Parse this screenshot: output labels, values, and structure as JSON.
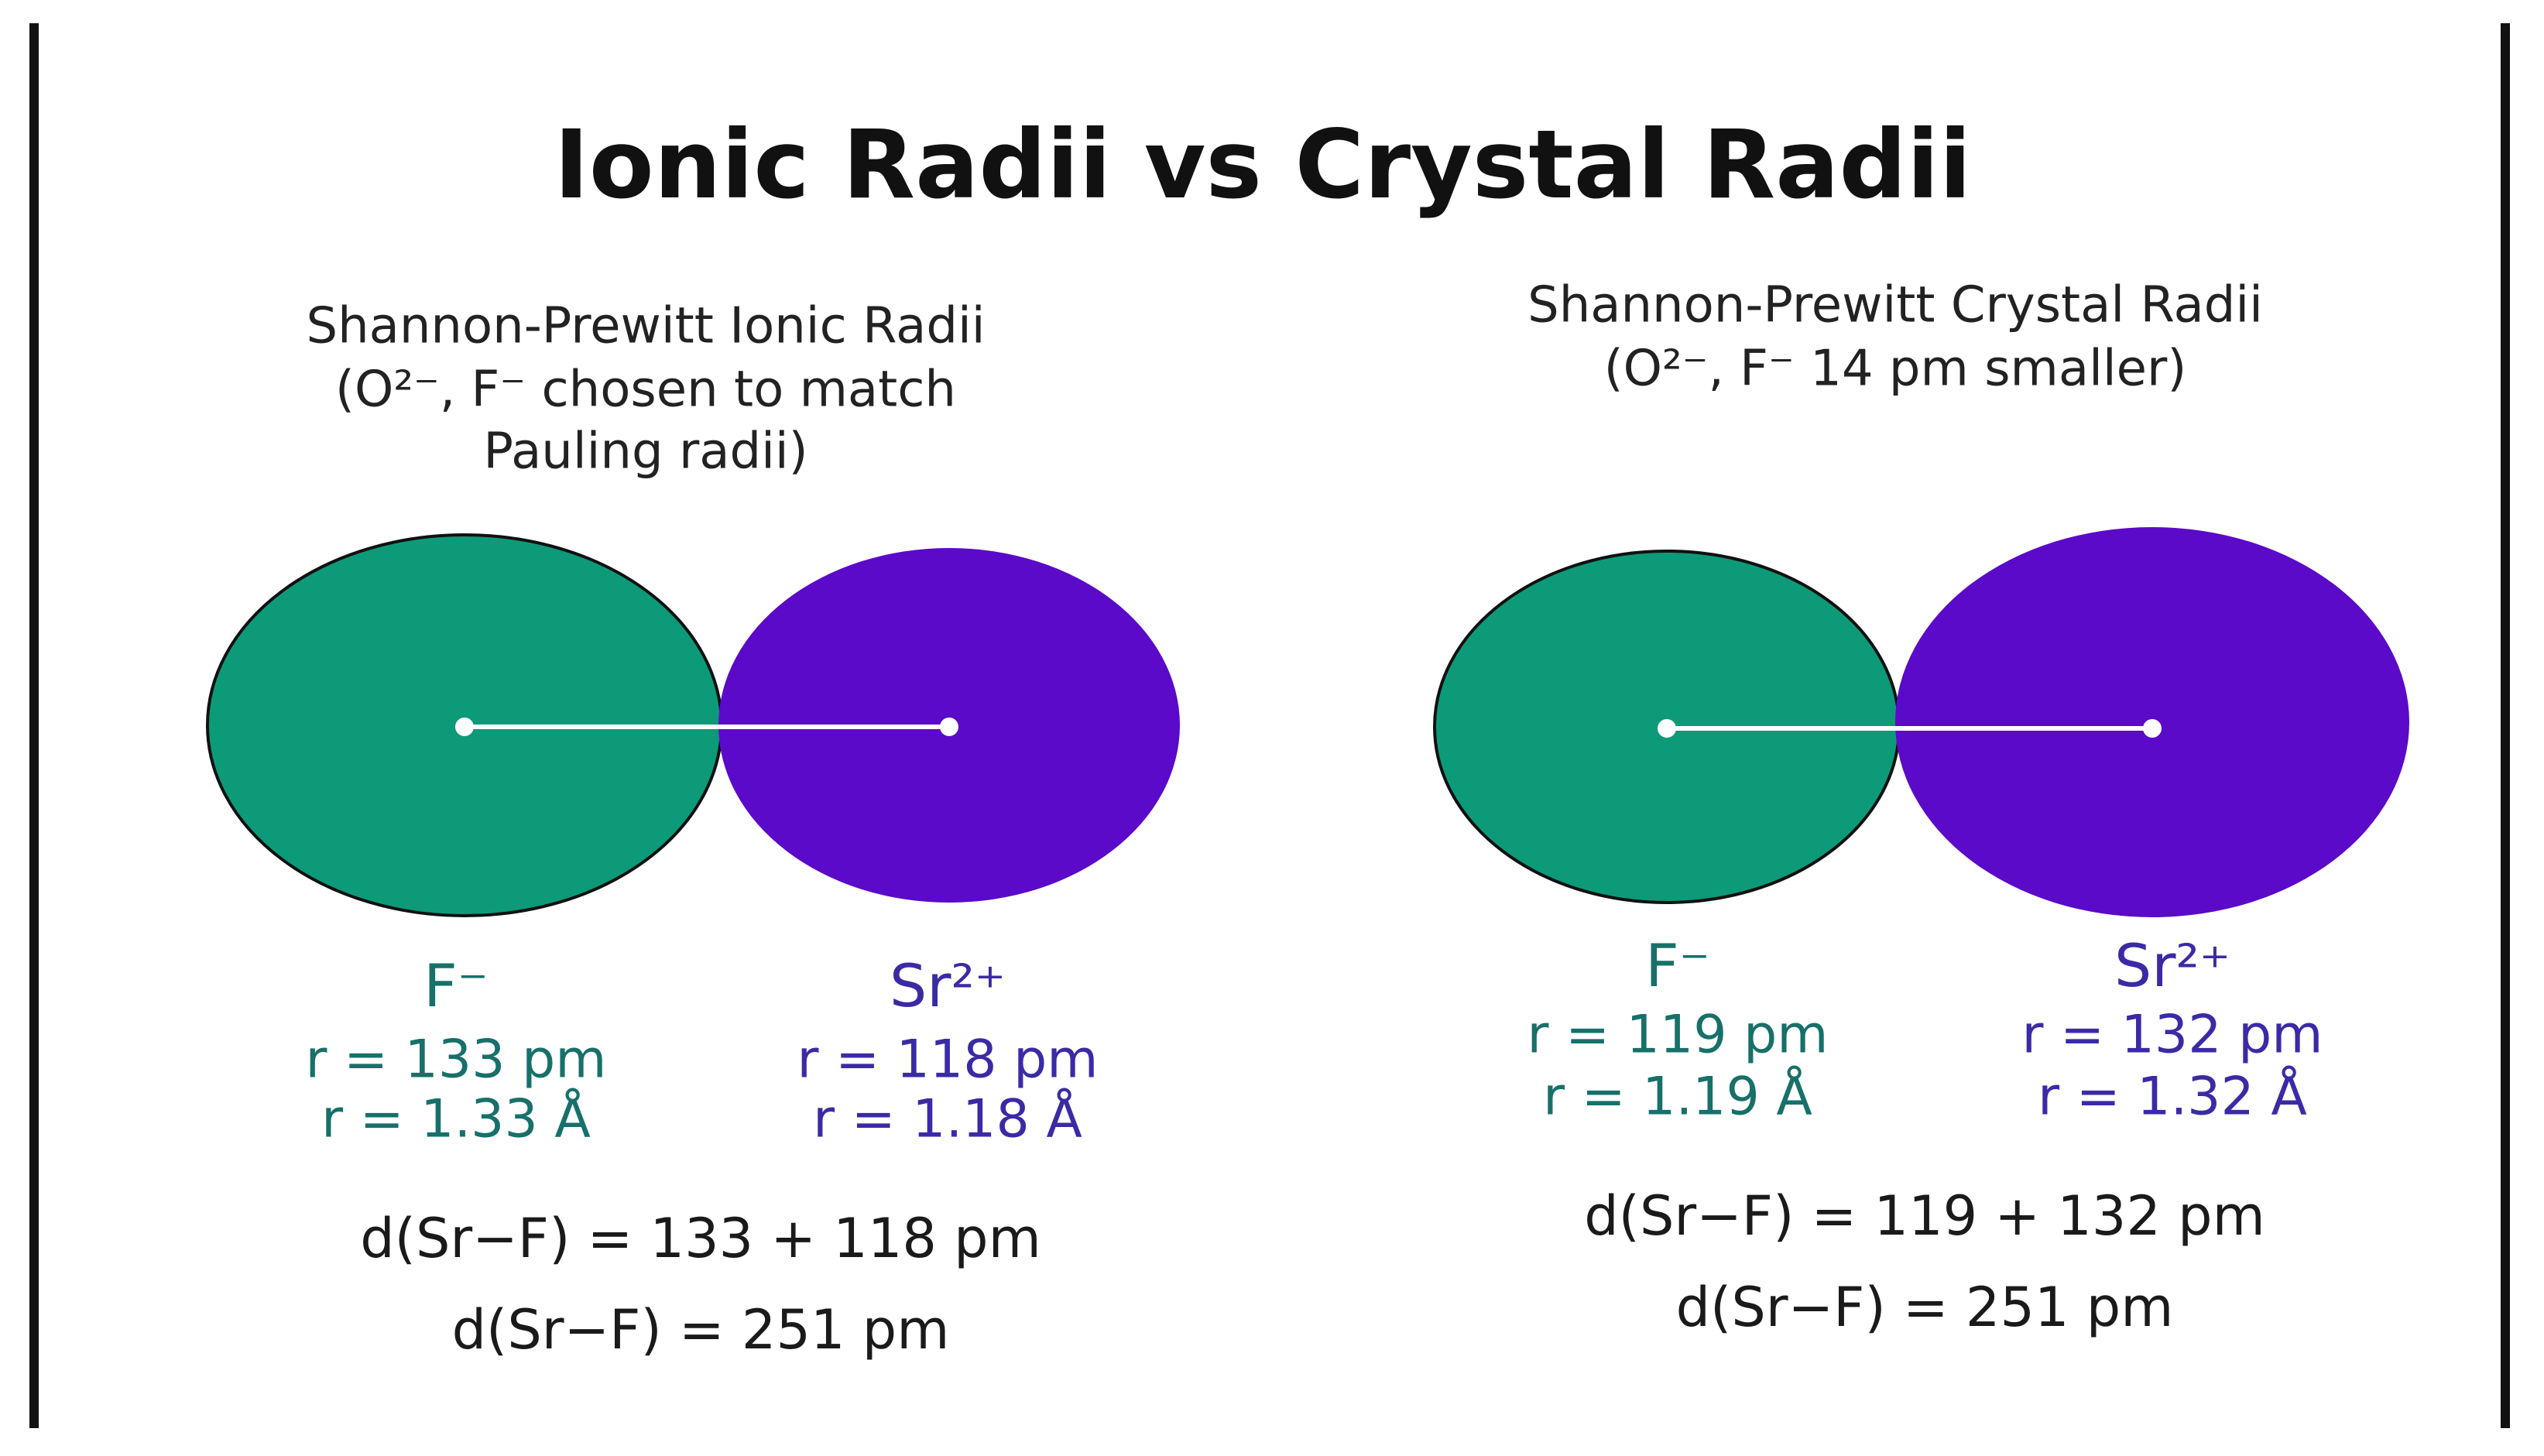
{
  "title": "Ionic Radii vs Crystal Radii",
  "panels": [
    {
      "heading": [
        "Shannon-Prewitt Ionic Radii",
        "(O²⁻, F⁻ chosen to match",
        "Pauling radii)"
      ],
      "ions": [
        {
          "name": "F⁻",
          "radius_pm": "r = 133 pm",
          "radius_angstrom": "r = 1.33 Å"
        },
        {
          "name": "Sr²⁺",
          "radius_pm": "r = 118 pm",
          "radius_angstrom": "r = 1.18 Å"
        }
      ],
      "equations": [
        "d(Sr−F) = 133 + 118 pm",
        "d(Sr−F) = 251 pm"
      ]
    },
    {
      "heading": [
        "Shannon-Prewitt Crystal Radii",
        "(O²⁻, F⁻ 14 pm smaller)"
      ],
      "ions": [
        {
          "name": "F⁻",
          "radius_pm": "r = 119 pm",
          "radius_angstrom": "r = 1.19 Å"
        },
        {
          "name": "Sr²⁺",
          "radius_pm": "r = 132 pm",
          "radius_angstrom": "r = 1.32 Å"
        }
      ],
      "equations": [
        "d(Sr−F) = 119 + 132 pm",
        "d(Sr−F) = 251 pm"
      ]
    }
  ]
}
